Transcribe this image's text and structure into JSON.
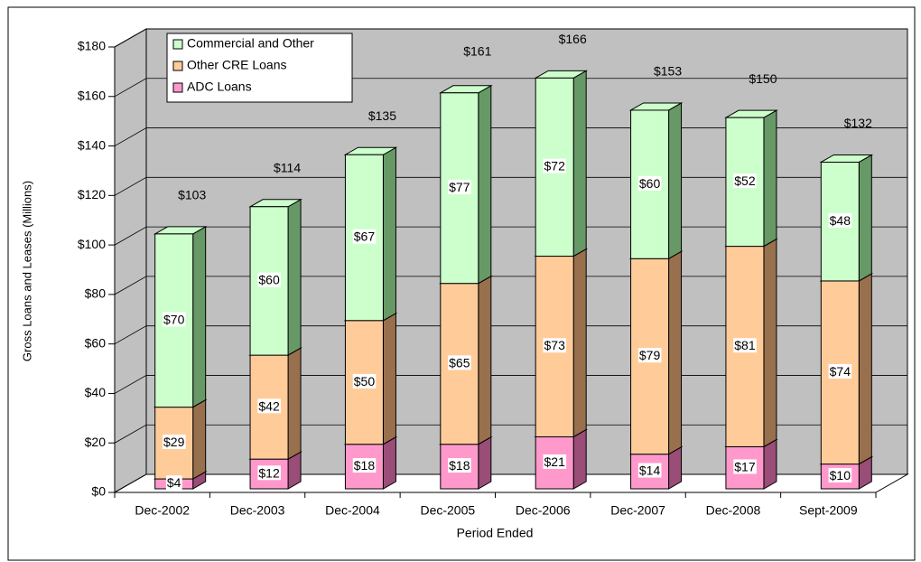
{
  "chart_data": {
    "type": "bar3d-stacked",
    "y_label": "Gross Loans and Leases  (Millions)",
    "x_label": "Period Ended",
    "categories": [
      "Dec-2002",
      "Dec-2003",
      "Dec-2004",
      "Dec-2005",
      "Dec-2006",
      "Dec-2007",
      "Dec-2008",
      "Sept-2009"
    ],
    "series": [
      {
        "name": "Commercial and Other",
        "color": "#ccffcc",
        "side_color": "#669966",
        "values": [
          70,
          60,
          67,
          77,
          72,
          60,
          52,
          48
        ],
        "value_labels": [
          "$70",
          "$60",
          "$67",
          "$77",
          "$72",
          "$60",
          "$52",
          "$48"
        ]
      },
      {
        "name": "Other CRE Loans",
        "color": "#ffcc99",
        "side_color": "#99704d",
        "values": [
          29,
          42,
          50,
          65,
          73,
          79,
          81,
          74
        ],
        "value_labels": [
          "$29",
          "$42",
          "$50",
          "$65",
          "$73",
          "$79",
          "$81",
          "$74"
        ]
      },
      {
        "name": "ADC Loans",
        "color": "#ff99cc",
        "side_color": "#994d77",
        "values": [
          4,
          12,
          18,
          18,
          21,
          14,
          17,
          10
        ],
        "value_labels": [
          "$4",
          "$12",
          "$18",
          "$18",
          "$21",
          "$14",
          "$17",
          "$10"
        ]
      }
    ],
    "totals": {
      "values": [
        103,
        114,
        135,
        161,
        166,
        153,
        150,
        132
      ],
      "value_labels": [
        "$103",
        "$114",
        "$135",
        "$161",
        "$166",
        "$153",
        "$150",
        "$132"
      ]
    },
    "ylim": [
      0,
      180
    ],
    "yticks": [
      {
        "value": 0,
        "label": "$0"
      },
      {
        "value": 20,
        "label": "$20"
      },
      {
        "value": 40,
        "label": "$40"
      },
      {
        "value": 60,
        "label": "$60"
      },
      {
        "value": 80,
        "label": "$80"
      },
      {
        "value": 100,
        "label": "$100"
      },
      {
        "value": 120,
        "label": "$120"
      },
      {
        "value": 140,
        "label": "$140"
      },
      {
        "value": 160,
        "label": "$160"
      },
      {
        "value": 180,
        "label": "$180"
      }
    ],
    "grid": true,
    "wall_color": "#c0c0c0",
    "legend": "top-left"
  }
}
